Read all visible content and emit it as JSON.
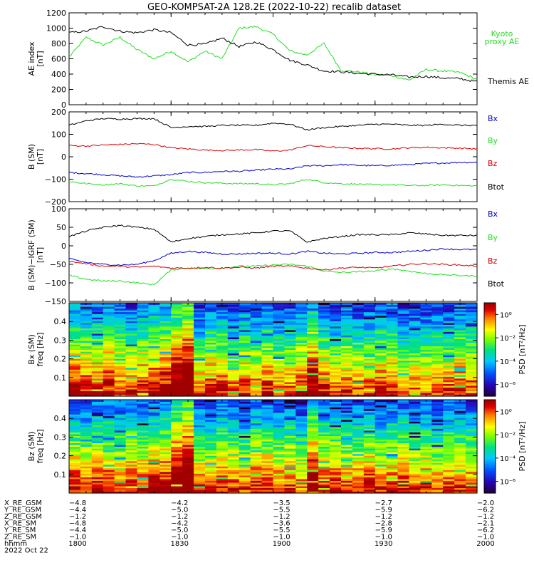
{
  "title": "GEO-KOMPSAT-2A 128.2E (2022-10-22) recalib dataset",
  "colors": {
    "black": "#000000",
    "red": "#d40000",
    "green": "#22dd22",
    "blue": "#0000cc",
    "kyoto": "#22cc22"
  },
  "chart_data": [
    {
      "type": "line",
      "panel": "ae",
      "ylabel": "AE index",
      "yunit": "[nT]",
      "ylim": [
        0,
        1200
      ],
      "yticks": [
        0,
        200,
        400,
        600,
        800,
        1000,
        1200
      ],
      "x": [
        1800,
        1805,
        1810,
        1815,
        1820,
        1825,
        1830,
        1835,
        1840,
        1845,
        1850,
        1855,
        1900,
        1905,
        1910,
        1915,
        1920,
        1925,
        1930,
        1935,
        1940,
        1945,
        1950,
        1955,
        2000
      ],
      "series": [
        {
          "name": "Kyoto proxy AE",
          "label": [
            "Kyoto",
            "proxy AE"
          ],
          "color": "#22dd22",
          "values": [
            620,
            880,
            780,
            880,
            720,
            600,
            700,
            560,
            700,
            600,
            1000,
            1020,
            920,
            700,
            650,
            800,
            450,
            430,
            390,
            380,
            320,
            460,
            440,
            420,
            330
          ]
        },
        {
          "name": "Themis AE",
          "label": [
            "Themis AE"
          ],
          "color": "#000000",
          "values": [
            940,
            960,
            1020,
            960,
            940,
            980,
            940,
            780,
            790,
            870,
            760,
            820,
            720,
            580,
            520,
            440,
            430,
            410,
            400,
            390,
            360,
            370,
            350,
            340,
            300
          ]
        }
      ]
    },
    {
      "type": "line",
      "panel": "b",
      "ylabel": "B (SM)",
      "yunit": "[nT]",
      "ylim": [
        -200,
        200
      ],
      "yticks": [
        -200,
        -100,
        0,
        100,
        200
      ],
      "x": [
        1800,
        1805,
        1810,
        1815,
        1820,
        1825,
        1830,
        1835,
        1840,
        1845,
        1850,
        1855,
        1900,
        1905,
        1910,
        1915,
        1920,
        1925,
        1930,
        1935,
        1940,
        1945,
        1950,
        1955,
        2000
      ],
      "series": [
        {
          "name": "Bx",
          "color": "#0000cc",
          "values": [
            -70,
            -75,
            -80,
            -85,
            -90,
            -85,
            -80,
            -70,
            -70,
            -65,
            -65,
            -60,
            -55,
            -55,
            -40,
            -40,
            -35,
            -38,
            -40,
            -38,
            -35,
            -30,
            -28,
            -25,
            -25
          ]
        },
        {
          "name": "By",
          "color": "#22dd22",
          "values": [
            -110,
            -120,
            -125,
            -120,
            -130,
            -130,
            -100,
            -110,
            -115,
            -118,
            -120,
            -120,
            -125,
            -120,
            -100,
            -115,
            -120,
            -122,
            -125,
            -125,
            -128,
            -128,
            -125,
            -128,
            -130
          ]
        },
        {
          "name": "Bz",
          "color": "#d40000",
          "values": [
            50,
            48,
            52,
            55,
            58,
            55,
            40,
            35,
            30,
            28,
            30,
            32,
            25,
            30,
            50,
            45,
            40,
            38,
            36,
            35,
            40,
            42,
            40,
            38,
            35
          ]
        },
        {
          "name": "Btot",
          "color": "#000000",
          "values": [
            140,
            160,
            170,
            168,
            170,
            170,
            130,
            135,
            135,
            140,
            140,
            140,
            150,
            145,
            120,
            130,
            135,
            140,
            145,
            145,
            140,
            140,
            145,
            140,
            140
          ]
        }
      ]
    },
    {
      "type": "line",
      "panel": "db",
      "ylabel": "B (SM)−IGRF (SM)",
      "yunit": "[nT]",
      "ylim": [
        -150,
        100
      ],
      "yticks": [
        -150,
        -100,
        -50,
        0,
        50,
        100
      ],
      "x": [
        1800,
        1805,
        1810,
        1815,
        1820,
        1825,
        1830,
        1835,
        1840,
        1845,
        1850,
        1855,
        1900,
        1905,
        1910,
        1915,
        1920,
        1925,
        1930,
        1935,
        1940,
        1945,
        1950,
        1955,
        2000
      ],
      "series": [
        {
          "name": "Bx",
          "color": "#0000cc",
          "values": [
            -35,
            -45,
            -50,
            -52,
            -50,
            -40,
            -20,
            -15,
            -18,
            -22,
            -22,
            -20,
            -20,
            -22,
            -15,
            -20,
            -22,
            -20,
            -18,
            -18,
            -15,
            -12,
            -8,
            -10,
            -10
          ]
        },
        {
          "name": "By",
          "color": "#22dd22",
          "values": [
            -80,
            -90,
            -95,
            -95,
            -100,
            -105,
            -65,
            -60,
            -62,
            -60,
            -55,
            -55,
            -52,
            -50,
            -55,
            -68,
            -72,
            -70,
            -68,
            -62,
            -68,
            -75,
            -78,
            -80,
            -82
          ]
        },
        {
          "name": "Bz",
          "color": "#d40000",
          "values": [
            -42,
            -48,
            -55,
            -55,
            -58,
            -55,
            -60,
            -60,
            -58,
            -60,
            -58,
            -60,
            -55,
            -55,
            -60,
            -65,
            -60,
            -58,
            -60,
            -55,
            -50,
            -48,
            -50,
            -52,
            -55
          ]
        },
        {
          "name": "Btot",
          "color": "#000000",
          "values": [
            25,
            40,
            50,
            55,
            50,
            45,
            10,
            20,
            25,
            30,
            32,
            35,
            40,
            40,
            10,
            20,
            25,
            30,
            30,
            30,
            35,
            32,
            28,
            28,
            28
          ]
        }
      ]
    },
    {
      "type": "heatmap",
      "panel": "specx",
      "ylabel": "Bx (SM)",
      "yunit": "freq  [Hz]",
      "ylim": [
        0,
        0.5
      ],
      "yticks": [
        0.1,
        0.2,
        0.3,
        0.4
      ],
      "colorbar": {
        "label": "PSD  [nT²/Hz]",
        "ticks": [
          "10⁰",
          "10⁻²",
          "10⁻⁴",
          "10⁻⁶"
        ],
        "tick_values": [
          0,
          -2,
          -4,
          -6
        ],
        "range": [
          -7,
          1
        ]
      },
      "bursts_time": [
        1834,
        1912
      ]
    },
    {
      "type": "heatmap",
      "panel": "specz",
      "ylabel": "Bz (SM)",
      "yunit": "freq  [Hz]",
      "ylim": [
        0,
        0.5
      ],
      "yticks": [
        0.1,
        0.2,
        0.3,
        0.4
      ],
      "colorbar": {
        "label": "PSD  [nT²/Hz]",
        "ticks": [
          "10⁰",
          "10⁻²",
          "10⁻⁴",
          "10⁻⁶"
        ],
        "tick_values": [
          0,
          -2,
          -4,
          -6
        ],
        "range": [
          -7,
          1
        ]
      },
      "bursts_time": [
        1834,
        1912
      ]
    }
  ],
  "xaxis": {
    "labels": [
      "X_RE_GSM",
      "Y_RE_GSM",
      "Z_RE_GSM",
      "X_RE_SM",
      "Y_RE_SM",
      "Z_RE_SM",
      "hhmm"
    ],
    "columns": [
      {
        "t": 1800,
        "vals": [
          "−4.8",
          "−4.4",
          "−1.2",
          "−4.8",
          "−4.4",
          "−1.0",
          "1800"
        ]
      },
      {
        "t": 1830,
        "vals": [
          "−4.2",
          "−5.0",
          "−1.2",
          "−4.2",
          "−5.0",
          "−1.0",
          "1830"
        ]
      },
      {
        "t": 1900,
        "vals": [
          "−3.5",
          "−5.5",
          "−1.2",
          "−3.6",
          "−5.5",
          "−1.0",
          "1900"
        ]
      },
      {
        "t": 1930,
        "vals": [
          "−2.7",
          "−5.9",
          "−1.2",
          "−2.8",
          "−5.9",
          "−1.0",
          "1930"
        ]
      },
      {
        "t": 2000,
        "vals": [
          "−2.0",
          "−6.2",
          "−1.2",
          "−2.1",
          "−6.2",
          "−1.0",
          "2000"
        ]
      }
    ],
    "date": "2022 Oct 22"
  }
}
